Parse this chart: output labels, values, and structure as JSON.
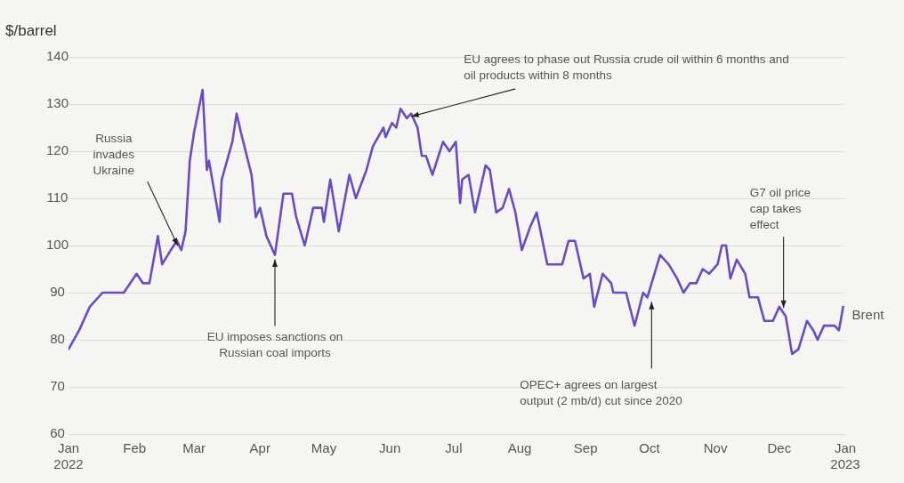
{
  "chart_data": {
    "type": "line",
    "ylabel": "$/barrel",
    "xlim": [
      "2022-01-01",
      "2023-01-01"
    ],
    "xticks": [
      {
        "value": "2022-01-01",
        "label": "Jan 2022"
      },
      {
        "value": "2022-02-01",
        "label": "Feb"
      },
      {
        "value": "2022-03-01",
        "label": "Mar"
      },
      {
        "value": "2022-04-01",
        "label": "Apr"
      },
      {
        "value": "2022-05-01",
        "label": "May"
      },
      {
        "value": "2022-06-01",
        "label": "Jun"
      },
      {
        "value": "2022-07-01",
        "label": "Jul"
      },
      {
        "value": "2022-08-01",
        "label": "Aug"
      },
      {
        "value": "2022-09-01",
        "label": "Sep"
      },
      {
        "value": "2022-10-01",
        "label": "Oct"
      },
      {
        "value": "2022-11-01",
        "label": "Nov"
      },
      {
        "value": "2022-12-01",
        "label": "Dec"
      },
      {
        "value": "2023-01-01",
        "label": "Jan 2023"
      }
    ],
    "ylim": [
      60,
      140
    ],
    "yticks": [
      60,
      70,
      80,
      90,
      100,
      110,
      120,
      130,
      140
    ],
    "grid": "y",
    "legend": false,
    "marker": "none",
    "line_style": "solid",
    "x": [
      "2022-01-01",
      "2022-01-06",
      "2022-01-11",
      "2022-01-17",
      "2022-01-22",
      "2022-01-27",
      "2022-02-02",
      "2022-02-05",
      "2022-02-08",
      "2022-02-12",
      "2022-02-14",
      "2022-02-18",
      "2022-02-21",
      "2022-02-23",
      "2022-02-25",
      "2022-02-27",
      "2022-03-01",
      "2022-03-05",
      "2022-03-07",
      "2022-03-08",
      "2022-03-13",
      "2022-03-14",
      "2022-03-19",
      "2022-03-21",
      "2022-03-23",
      "2022-03-28",
      "2022-03-30",
      "2022-04-01",
      "2022-04-04",
      "2022-04-08",
      "2022-04-12",
      "2022-04-16",
      "2022-04-18",
      "2022-04-22",
      "2022-04-26",
      "2022-04-30",
      "2022-05-01",
      "2022-05-04",
      "2022-05-08",
      "2022-05-13",
      "2022-05-16",
      "2022-05-21",
      "2022-05-24",
      "2022-05-29",
      "2022-05-30",
      "2022-06-02",
      "2022-06-04",
      "2022-06-06",
      "2022-06-09",
      "2022-06-11",
      "2022-06-14",
      "2022-06-16",
      "2022-06-18",
      "2022-06-21",
      "2022-06-26",
      "2022-06-29",
      "2022-07-02",
      "2022-07-04",
      "2022-07-05",
      "2022-07-08",
      "2022-07-11",
      "2022-07-16",
      "2022-07-18",
      "2022-07-21",
      "2022-07-24",
      "2022-07-27",
      "2022-07-30",
      "2022-08-02",
      "2022-08-06",
      "2022-08-09",
      "2022-08-14",
      "2022-08-19",
      "2022-08-21",
      "2022-08-24",
      "2022-08-27",
      "2022-08-31",
      "2022-09-03",
      "2022-09-05",
      "2022-09-09",
      "2022-09-13",
      "2022-09-14",
      "2022-09-20",
      "2022-09-24",
      "2022-09-28",
      "2022-09-30",
      "2022-10-06",
      "2022-10-10",
      "2022-10-14",
      "2022-10-17",
      "2022-10-20",
      "2022-10-23",
      "2022-10-26",
      "2022-10-29",
      "2022-11-02",
      "2022-11-04",
      "2022-11-06",
      "2022-11-08",
      "2022-11-11",
      "2022-11-15",
      "2022-11-17",
      "2022-11-21",
      "2022-11-24",
      "2022-11-28",
      "2022-12-01",
      "2022-12-04",
      "2022-12-07",
      "2022-12-10",
      "2022-12-14",
      "2022-12-17",
      "2022-12-19",
      "2022-12-22",
      "2022-12-27",
      "2022-12-29",
      "2022-12-31"
    ],
    "series": [
      {
        "name": "Brent",
        "color": "#6a4cc0",
        "values": [
          78,
          82,
          87,
          90,
          90,
          90,
          94,
          92,
          92,
          102,
          96,
          99,
          101,
          99,
          103,
          118,
          124,
          133,
          116,
          118,
          105,
          114,
          122,
          128,
          124,
          115,
          106,
          108,
          102,
          98,
          111,
          111,
          106,
          100,
          108,
          108,
          105,
          114,
          103,
          115,
          110,
          116,
          121,
          125,
          123,
          126,
          125,
          129,
          127,
          128,
          125,
          119,
          119,
          115,
          122,
          120,
          122,
          109,
          114,
          115,
          107,
          117,
          116,
          107,
          108,
          112,
          107,
          99,
          104,
          107,
          96,
          96,
          96,
          101,
          101,
          93,
          94,
          87,
          94,
          92,
          90,
          90,
          83,
          90,
          89,
          98,
          96,
          93,
          90,
          92,
          92,
          95,
          94,
          96,
          100,
          100,
          93,
          97,
          94,
          89,
          89,
          84,
          84,
          87,
          85,
          77,
          78,
          84,
          82,
          80,
          83,
          83,
          82,
          87
        ]
      }
    ],
    "annotations": [
      {
        "text": "Russia invades Ukraine",
        "x": "2022-02-23",
        "y": 99
      },
      {
        "text": "EU imposes sanctions on Russian coal imports",
        "x": "2022-04-08",
        "y": 98
      },
      {
        "text": "EU agrees to phase out Russia crude oil within 6 months and oil products within 8 months",
        "x": "2022-06-09",
        "y": 127
      },
      {
        "text": "OPEC+ agrees on largest output (2 mb/d) cut since 2020",
        "x": "2022-10-02",
        "y": 89
      },
      {
        "text": "G7 oil price cap takes effect",
        "x": "2022-12-03",
        "y": 86
      }
    ]
  }
}
